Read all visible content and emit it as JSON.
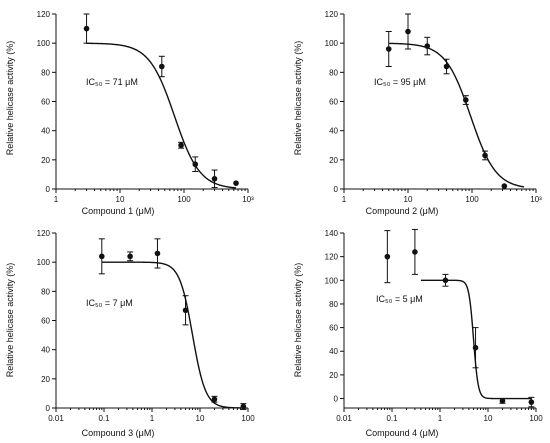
{
  "figure": {
    "ylabel": "Relative helicase activity (%)"
  },
  "chart_data": [
    {
      "type": "scatter",
      "panel": "top-left",
      "xlabel": "Compound 1 (μM)",
      "ylabel": "Relative helicase activity (%)",
      "x_scale": "log",
      "xlim": [
        1,
        1000
      ],
      "ylim": [
        0,
        120
      ],
      "x_ticks": [
        1,
        10,
        100,
        1000
      ],
      "x_tick_labels": [
        "1",
        "10",
        "100",
        "10³"
      ],
      "y_ticks": [
        0,
        20,
        40,
        60,
        80,
        100,
        120
      ],
      "annotation": "IC₅₀ = 71 μM",
      "ic50": 71,
      "hill": 2.2,
      "top": 100,
      "bottom": 0,
      "curve_x_range": [
        3,
        650
      ],
      "points": [
        {
          "x": 3,
          "y": 110,
          "err": 10
        },
        {
          "x": 45,
          "y": 84,
          "err": 7
        },
        {
          "x": 90,
          "y": 30,
          "err": 2
        },
        {
          "x": 150,
          "y": 17,
          "err": 5
        },
        {
          "x": 300,
          "y": 7,
          "err": 6
        },
        {
          "x": 650,
          "y": 4,
          "err": 0
        }
      ]
    },
    {
      "type": "scatter",
      "panel": "top-right",
      "xlabel": "Compound 2 (μM)",
      "ylabel": "Relative helicase activity (%)",
      "x_scale": "log",
      "xlim": [
        1,
        1000
      ],
      "ylim": [
        0,
        120
      ],
      "x_ticks": [
        1,
        10,
        100,
        1000
      ],
      "x_tick_labels": [
        "1",
        "10",
        "100",
        "10³"
      ],
      "y_ticks": [
        0,
        20,
        40,
        60,
        80,
        100,
        120
      ],
      "annotation": "IC₅₀ = 95 μM",
      "ic50": 95,
      "hill": 2.2,
      "top": 100,
      "bottom": 0,
      "curve_x_range": [
        5,
        650
      ],
      "points": [
        {
          "x": 5,
          "y": 96,
          "err": 12
        },
        {
          "x": 10,
          "y": 108,
          "err": 12
        },
        {
          "x": 20,
          "y": 98,
          "err": 6
        },
        {
          "x": 40,
          "y": 84,
          "err": 5
        },
        {
          "x": 80,
          "y": 61,
          "err": 3
        },
        {
          "x": 160,
          "y": 23,
          "err": 3
        },
        {
          "x": 320,
          "y": 2,
          "err": 0
        }
      ]
    },
    {
      "type": "scatter",
      "panel": "bottom-left",
      "xlabel": "Compound 3 (μM)",
      "ylabel": "Relative helicase activity (%)",
      "x_scale": "log",
      "xlim": [
        0.01,
        100
      ],
      "ylim": [
        0,
        120
      ],
      "x_ticks": [
        0.01,
        0.1,
        1,
        10,
        100
      ],
      "x_tick_labels": [
        "0.01",
        "0.1",
        "1",
        "10",
        "100"
      ],
      "y_ticks": [
        0,
        20,
        40,
        60,
        80,
        100,
        120
      ],
      "annotation": "IC₅₀ = 7 μM",
      "ic50": 7,
      "hill": 3.2,
      "top": 100,
      "bottom": 0,
      "curve_x_range": [
        0.09,
        80
      ],
      "points": [
        {
          "x": 0.09,
          "y": 104,
          "err": 12
        },
        {
          "x": 0.35,
          "y": 104,
          "err": 3
        },
        {
          "x": 1.3,
          "y": 106,
          "err": 10
        },
        {
          "x": 5,
          "y": 67,
          "err": 10
        },
        {
          "x": 20,
          "y": 6,
          "err": 2
        },
        {
          "x": 80,
          "y": 1,
          "err": 2
        }
      ]
    },
    {
      "type": "scatter",
      "panel": "bottom-right",
      "xlabel": "Compound 4 (μM)",
      "ylabel": "Relative helicase activity (%)",
      "x_scale": "log",
      "xlim": [
        0.01,
        100
      ],
      "ylim": [
        -8,
        140
      ],
      "x_ticks": [
        0.01,
        0.1,
        1,
        10,
        100
      ],
      "x_tick_labels": [
        "0.01",
        "0.1",
        "1",
        "10",
        "100"
      ],
      "y_ticks": [
        0,
        20,
        40,
        60,
        80,
        100,
        120,
        140
      ],
      "annotation": "IC₅₀ = 5 μM",
      "ic50": 5,
      "hill": 9,
      "top": 100,
      "bottom": 0,
      "curve_x_range": [
        0.4,
        80
      ],
      "points": [
        {
          "x": 0.08,
          "y": 120,
          "err": 22
        },
        {
          "x": 0.3,
          "y": 124,
          "err": 19
        },
        {
          "x": 1.3,
          "y": 100,
          "err": 5
        },
        {
          "x": 5.5,
          "y": 43,
          "err": 17
        },
        {
          "x": 20,
          "y": -2,
          "err": 2
        },
        {
          "x": 80,
          "y": -3,
          "err": 4
        }
      ]
    }
  ]
}
